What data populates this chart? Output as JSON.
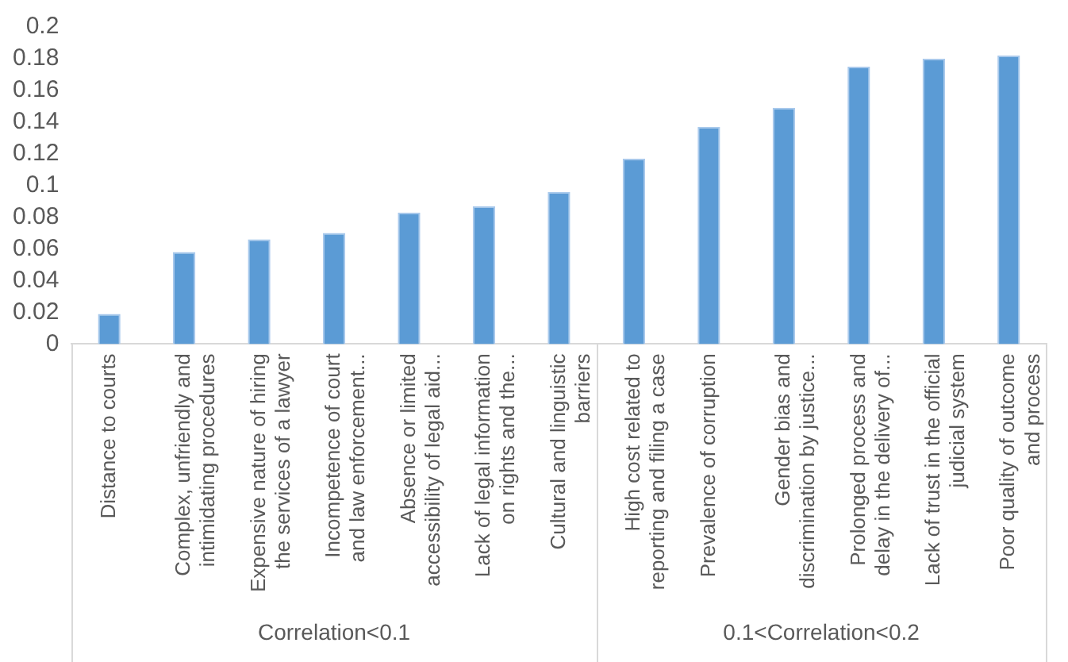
{
  "chart_data": {
    "type": "bar",
    "categories": [
      "Distance to courts",
      "Complex, unfriendly and\nintimidating procedures",
      "Expensive nature of hiring\nthe services of a lawyer",
      "Incompetence of court\nand law enforcement...",
      "Absence or limited\naccessibility of legal aid...",
      "Lack of legal information\non rights and the...",
      "Cultural and linguistic\nbarriers",
      "High cost related to\nreporting and filing a case",
      "Prevalence of corruption",
      "Gender bias and\ndiscrimination by justice...",
      "Prolonged process and\ndelay in the delivery of...",
      "Lack of trust in the official\njudicial system",
      "Poor quality of outcome\nand process"
    ],
    "values": [
      0.019,
      0.058,
      0.066,
      0.07,
      0.083,
      0.087,
      0.096,
      0.117,
      0.137,
      0.149,
      0.175,
      0.18,
      0.182
    ],
    "color": "#5b9bd5",
    "ylim": [
      0,
      0.2
    ],
    "yticks": [
      0,
      0.02,
      0.04,
      0.06,
      0.08,
      0.1,
      0.12,
      0.14,
      0.16,
      0.18,
      0.2
    ],
    "grid": false,
    "legend": false,
    "annotations": [
      "Correlation<0.1",
      "0.1<Correlation<0.2"
    ]
  }
}
